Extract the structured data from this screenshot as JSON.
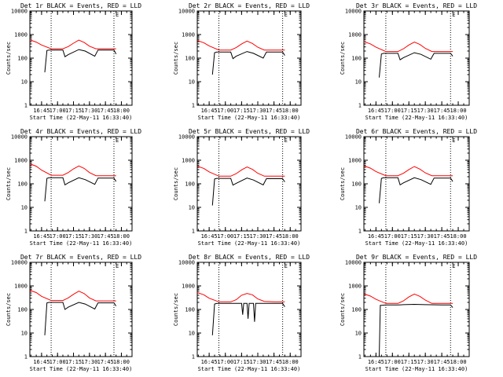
{
  "chart_data": [
    {
      "type": "line",
      "title": "Det 1r BLACK = Events, RED = LLD",
      "marker": "E",
      "xlabel": "Start Time (22-May-11 16:33:40)",
      "ylabel": "Counts/sec",
      "xlim": [
        "16:34",
        "18:10"
      ],
      "ylim": [
        1,
        10000
      ],
      "yscale": "log",
      "xticks": [
        "16:45",
        "17:00",
        "17:15",
        "17:30",
        "17:45",
        "18:00"
      ],
      "yticks": [
        "1",
        "10",
        "100",
        "1000",
        "10000"
      ],
      "vlines": [
        "16:54",
        "17:53"
      ],
      "series": [
        {
          "color": "#000000",
          "x": [
            "16:34",
            "16:40",
            "16:48",
            "16:50",
            "16:52",
            "16:54",
            "17:05",
            "17:07",
            "17:10",
            "17:20",
            "17:26",
            "17:35",
            "17:38",
            "17:45",
            "17:53",
            "17:55"
          ],
          "y": [
            null,
            null,
            25,
            210,
            220,
            220,
            220,
            115,
            140,
            230,
            200,
            120,
            220,
            220,
            220,
            150
          ]
        },
        {
          "color": "#ff0000",
          "x": [
            "16:34",
            "16:40",
            "16:45",
            "16:54",
            "17:05",
            "17:10",
            "17:15",
            "17:20",
            "17:25",
            "17:30",
            "17:36",
            "17:45",
            "17:55"
          ],
          "y": [
            600,
            480,
            360,
            250,
            250,
            310,
            430,
            580,
            460,
            320,
            250,
            250,
            250
          ]
        }
      ]
    },
    {
      "type": "line",
      "title": "Det 2r BLACK = Events, RED = LLD",
      "marker": "E",
      "xlabel": "Start Time (22-May-11 16:33:40)",
      "ylabel": "Counts/sec",
      "xlim": [
        "16:34",
        "18:10"
      ],
      "ylim": [
        1,
        10000
      ],
      "yscale": "log",
      "xticks": [
        "16:45",
        "17:00",
        "17:15",
        "17:30",
        "17:45",
        "18:00"
      ],
      "yticks": [
        "1",
        "10",
        "100",
        "1000",
        "10000"
      ],
      "vlines": [
        "16:54",
        "17:53"
      ],
      "series": [
        {
          "color": "#000000",
          "x": [
            "16:34",
            "16:40",
            "16:48",
            "16:50",
            "16:52",
            "16:54",
            "17:05",
            "17:07",
            "17:10",
            "17:20",
            "17:26",
            "17:35",
            "17:38",
            "17:45",
            "17:53",
            "17:55"
          ],
          "y": [
            null,
            null,
            20,
            170,
            180,
            180,
            180,
            95,
            120,
            190,
            160,
            100,
            180,
            180,
            180,
            130
          ]
        },
        {
          "color": "#ff0000",
          "x": [
            "16:34",
            "16:40",
            "16:45",
            "16:54",
            "17:05",
            "17:10",
            "17:15",
            "17:20",
            "17:25",
            "17:30",
            "17:36",
            "17:45",
            "17:55"
          ],
          "y": [
            560,
            450,
            330,
            220,
            220,
            280,
            400,
            530,
            420,
            290,
            220,
            220,
            220
          ]
        }
      ]
    },
    {
      "type": "line",
      "title": "Det 3r BLACK = Events, RED = LLD",
      "marker": "E",
      "xlabel": "Start Time (22-May-11 16:33:40)",
      "ylabel": "Counts/sec",
      "xlim": [
        "16:34",
        "18:10"
      ],
      "ylim": [
        1,
        10000
      ],
      "yscale": "log",
      "xticks": [
        "16:45",
        "17:00",
        "17:15",
        "17:30",
        "17:45",
        "18:00"
      ],
      "yticks": [
        "1",
        "10",
        "100",
        "1000",
        "10000"
      ],
      "vlines": [
        "16:54",
        "17:53"
      ],
      "series": [
        {
          "color": "#000000",
          "x": [
            "16:34",
            "16:40",
            "16:48",
            "16:50",
            "16:52",
            "16:54",
            "17:05",
            "17:07",
            "17:10",
            "17:20",
            "17:26",
            "17:35",
            "17:38",
            "17:45",
            "17:53",
            "17:55"
          ],
          "y": [
            null,
            null,
            15,
            150,
            160,
            160,
            160,
            85,
            105,
            170,
            145,
            90,
            160,
            160,
            160,
            120
          ]
        },
        {
          "color": "#ff0000",
          "x": [
            "16:34",
            "16:40",
            "16:45",
            "16:54",
            "17:05",
            "17:10",
            "17:15",
            "17:20",
            "17:25",
            "17:30",
            "17:36",
            "17:45",
            "17:55"
          ],
          "y": [
            500,
            400,
            290,
            190,
            190,
            250,
            360,
            480,
            380,
            260,
            190,
            190,
            190
          ]
        }
      ]
    },
    {
      "type": "line",
      "title": "Det 4r BLACK = Events, RED = LLD",
      "marker": "E",
      "xlabel": "Start Time (22-May-11 16:33:40)",
      "ylabel": "Counts/sec",
      "xlim": [
        "16:34",
        "18:10"
      ],
      "ylim": [
        1,
        10000
      ],
      "yscale": "log",
      "xticks": [
        "16:45",
        "17:00",
        "17:15",
        "17:30",
        "17:45",
        "18:00"
      ],
      "yticks": [
        "1",
        "10",
        "100",
        "1000",
        "10000"
      ],
      "vlines": [
        "16:54",
        "17:53"
      ],
      "series": [
        {
          "color": "#000000",
          "x": [
            "16:34",
            "16:40",
            "16:48",
            "16:50",
            "16:52",
            "16:54",
            "17:05",
            "17:07",
            "17:10",
            "17:20",
            "17:26",
            "17:35",
            "17:38",
            "17:45",
            "17:53",
            "17:55"
          ],
          "y": [
            null,
            null,
            18,
            170,
            180,
            180,
            180,
            90,
            110,
            180,
            150,
            95,
            175,
            175,
            175,
            125
          ]
        },
        {
          "color": "#ff0000",
          "x": [
            "16:34",
            "16:40",
            "16:45",
            "16:54",
            "17:05",
            "17:10",
            "17:15",
            "17:20",
            "17:25",
            "17:30",
            "17:36",
            "17:45",
            "17:55"
          ],
          "y": [
            700,
            560,
            380,
            230,
            230,
            300,
            430,
            570,
            450,
            300,
            220,
            220,
            220
          ]
        }
      ]
    },
    {
      "type": "line",
      "title": "Det 5r BLACK = Events, RED = LLD",
      "marker": "E",
      "xlabel": "Start Time (22-May-11 16:33:40)",
      "ylabel": "Counts/sec",
      "xlim": [
        "16:34",
        "18:10"
      ],
      "ylim": [
        1,
        10000
      ],
      "yscale": "log",
      "xticks": [
        "16:45",
        "17:00",
        "17:15",
        "17:30",
        "17:45",
        "18:00"
      ],
      "yticks": [
        "1",
        "10",
        "100",
        "1000",
        "10000"
      ],
      "vlines": [
        "16:54",
        "17:53"
      ],
      "series": [
        {
          "color": "#000000",
          "x": [
            "16:34",
            "16:40",
            "16:48",
            "16:50",
            "16:52",
            "16:54",
            "17:05",
            "17:07",
            "17:10",
            "17:20",
            "17:26",
            "17:35",
            "17:38",
            "17:45",
            "17:53",
            "17:55"
          ],
          "y": [
            null,
            null,
            12,
            160,
            170,
            170,
            170,
            88,
            105,
            175,
            145,
            90,
            165,
            165,
            165,
            120
          ]
        },
        {
          "color": "#ff0000",
          "x": [
            "16:34",
            "16:40",
            "16:45",
            "16:54",
            "17:05",
            "17:10",
            "17:15",
            "17:20",
            "17:25",
            "17:30",
            "17:36",
            "17:45",
            "17:55"
          ],
          "y": [
            560,
            450,
            320,
            210,
            210,
            270,
            390,
            520,
            410,
            280,
            210,
            210,
            210
          ]
        }
      ]
    },
    {
      "type": "line",
      "title": "Det 6r BLACK = Events, RED = LLD",
      "marker": "E",
      "xlabel": "Start Time (22-May-11 16:33:40)",
      "ylabel": "Counts/sec",
      "xlim": [
        "16:34",
        "18:10"
      ],
      "ylim": [
        1,
        10000
      ],
      "yscale": "log",
      "xticks": [
        "16:45",
        "17:00",
        "17:15",
        "17:30",
        "17:45",
        "18:00"
      ],
      "yticks": [
        "1",
        "10",
        "100",
        "1000",
        "10000"
      ],
      "vlines": [
        "16:54",
        "17:53"
      ],
      "series": [
        {
          "color": "#000000",
          "x": [
            "16:34",
            "16:40",
            "16:48",
            "16:50",
            "16:52",
            "16:54",
            "17:05",
            "17:07",
            "17:10",
            "17:20",
            "17:26",
            "17:35",
            "17:38",
            "17:45",
            "17:53",
            "17:55"
          ],
          "y": [
            null,
            null,
            15,
            170,
            180,
            180,
            180,
            90,
            110,
            180,
            150,
            95,
            175,
            175,
            175,
            125
          ]
        },
        {
          "color": "#ff0000",
          "x": [
            "16:34",
            "16:40",
            "16:45",
            "16:54",
            "17:05",
            "17:10",
            "17:15",
            "17:20",
            "17:25",
            "17:30",
            "17:36",
            "17:45",
            "17:55"
          ],
          "y": [
            580,
            460,
            330,
            220,
            220,
            280,
            400,
            540,
            420,
            290,
            220,
            220,
            220
          ]
        }
      ]
    },
    {
      "type": "line",
      "title": "Det 7r BLACK = Events, RED = LLD",
      "marker": "E",
      "xlabel": "Start Time (22-May-11 16:33:40)",
      "ylabel": "Counts/sec",
      "xlim": [
        "16:34",
        "18:10"
      ],
      "ylim": [
        1,
        10000
      ],
      "yscale": "log",
      "xticks": [
        "16:45",
        "17:00",
        "17:15",
        "17:30",
        "17:45",
        "18:00"
      ],
      "yticks": [
        "1",
        "10",
        "100",
        "1000",
        "10000"
      ],
      "vlines": [
        "16:54",
        "17:53"
      ],
      "series": [
        {
          "color": "#000000",
          "x": [
            "16:34",
            "16:40",
            "16:48",
            "16:50",
            "16:52",
            "16:54",
            "17:05",
            "17:07",
            "17:10",
            "17:20",
            "17:26",
            "17:35",
            "17:38",
            "17:45",
            "17:53",
            "17:55"
          ],
          "y": [
            null,
            null,
            8,
            190,
            200,
            200,
            200,
            100,
            125,
            200,
            170,
            105,
            190,
            190,
            190,
            140
          ]
        },
        {
          "color": "#ff0000",
          "x": [
            "16:34",
            "16:40",
            "16:45",
            "16:54",
            "17:05",
            "17:10",
            "17:15",
            "17:20",
            "17:25",
            "17:30",
            "17:36",
            "17:45",
            "17:55"
          ],
          "y": [
            650,
            520,
            360,
            240,
            240,
            310,
            440,
            600,
            470,
            310,
            230,
            230,
            230
          ]
        }
      ]
    },
    {
      "type": "line",
      "title": "Det 8r BLACK = Events, RED = LLD",
      "marker": "E",
      "xlabel": "Start Time (22-May-11 16:33:40)",
      "ylabel": "Counts/sec",
      "xlim": [
        "16:34",
        "18:10"
      ],
      "ylim": [
        1,
        10000
      ],
      "yscale": "log",
      "xticks": [
        "16:45",
        "17:00",
        "17:15",
        "17:30",
        "17:45",
        "18:00"
      ],
      "yticks": [
        "1",
        "10",
        "100",
        "1000",
        "10000"
      ],
      "vlines": [
        "16:54",
        "17:53"
      ],
      "series": [
        {
          "color": "#000000",
          "x": [
            "16:34",
            "16:40",
            "16:48",
            "16:50",
            "16:52",
            "16:54",
            "17:05",
            "17:07",
            "17:10",
            "17:15",
            "17:16",
            "17:17",
            "17:20",
            "17:21",
            "17:22",
            "17:26",
            "17:27",
            "17:28",
            "17:45",
            "17:53",
            "17:55"
          ],
          "y": [
            null,
            null,
            8,
            170,
            180,
            180,
            180,
            180,
            180,
            180,
            60,
            180,
            180,
            40,
            180,
            180,
            30,
            180,
            180,
            180,
            130
          ]
        },
        {
          "color": "#ff0000",
          "x": [
            "16:34",
            "16:40",
            "16:45",
            "16:54",
            "17:05",
            "17:10",
            "17:15",
            "17:20",
            "17:25",
            "17:30",
            "17:36",
            "17:45",
            "17:55"
          ],
          "y": [
            520,
            420,
            300,
            210,
            210,
            260,
            400,
            480,
            420,
            280,
            220,
            210,
            210
          ]
        }
      ]
    },
    {
      "type": "line",
      "title": "Det 9r BLACK = Events, RED = LLD",
      "marker": "E",
      "xlabel": "Start Time (22-May-11 16:33:40)",
      "ylabel": "Counts/sec",
      "xlim": [
        "16:34",
        "18:10"
      ],
      "ylim": [
        1,
        10000
      ],
      "yscale": "log",
      "xticks": [
        "16:45",
        "17:00",
        "17:15",
        "17:30",
        "17:45",
        "18:00"
      ],
      "yticks": [
        "1",
        "10",
        "100",
        "1000",
        "10000"
      ],
      "vlines": [
        "16:54",
        "17:53"
      ],
      "series": [
        {
          "color": "#000000",
          "x": [
            "16:34",
            "16:40",
            "16:48",
            "16:49",
            "16:50",
            "16:54",
            "17:05",
            "17:10",
            "17:20",
            "17:30",
            "17:45",
            "17:53",
            "17:55"
          ],
          "y": [
            null,
            null,
            1,
            150,
            150,
            155,
            155,
            160,
            165,
            160,
            155,
            155,
            120
          ]
        },
        {
          "color": "#ff0000",
          "x": [
            "16:34",
            "16:40",
            "16:45",
            "16:54",
            "17:05",
            "17:10",
            "17:15",
            "17:20",
            "17:25",
            "17:30",
            "17:36",
            "17:45",
            "17:55"
          ],
          "y": [
            460,
            370,
            270,
            180,
            180,
            230,
            340,
            450,
            360,
            250,
            180,
            180,
            180
          ]
        }
      ]
    }
  ]
}
